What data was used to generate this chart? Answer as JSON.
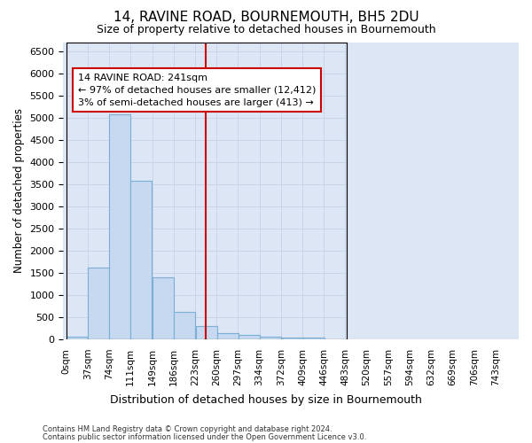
{
  "title1": "14, RAVINE ROAD, BOURNEMOUTH, BH5 2DU",
  "title2": "Size of property relative to detached houses in Bournemouth",
  "xlabel": "Distribution of detached houses by size in Bournemouth",
  "ylabel": "Number of detached properties",
  "bin_width": 37,
  "bin_starts": [
    0,
    37,
    74,
    111,
    149,
    186,
    223,
    260,
    297,
    334,
    372,
    409,
    446,
    483,
    520,
    557,
    594,
    632,
    669,
    706
  ],
  "bar_heights": [
    60,
    1620,
    5080,
    3580,
    1400,
    625,
    300,
    135,
    110,
    65,
    40,
    40,
    10,
    0,
    0,
    0,
    0,
    0,
    0,
    0
  ],
  "bar_color": "#c6d9f0",
  "bar_edge_color": "#7bafd4",
  "vline_x": 241,
  "vline_color": "#cc0000",
  "ylim": [
    0,
    6700
  ],
  "yticks": [
    0,
    500,
    1000,
    1500,
    2000,
    2500,
    3000,
    3500,
    4000,
    4500,
    5000,
    5500,
    6000,
    6500
  ],
  "grid_color": "#c8d4e8",
  "bg_color": "#dce6f5",
  "annotation_title": "14 RAVINE ROAD: 241sqm",
  "annotation_line1": "← 97% of detached houses are smaller (12,412)",
  "annotation_line2": "3% of semi-detached houses are larger (413) →",
  "footnote1": "Contains HM Land Registry data © Crown copyright and database right 2024.",
  "footnote2": "Contains public sector information licensed under the Open Government Licence v3.0.",
  "tick_labels": [
    "0sqm",
    "37sqm",
    "74sqm",
    "111sqm",
    "149sqm",
    "186sqm",
    "223sqm",
    "260sqm",
    "297sqm",
    "334sqm",
    "372sqm",
    "409sqm",
    "446sqm",
    "483sqm",
    "520sqm",
    "557sqm",
    "594sqm",
    "632sqm",
    "669sqm",
    "706sqm",
    "743sqm"
  ],
  "xlim_plot": 446,
  "xlim_ticks": 743,
  "title1_fontsize": 11,
  "title2_fontsize": 9
}
